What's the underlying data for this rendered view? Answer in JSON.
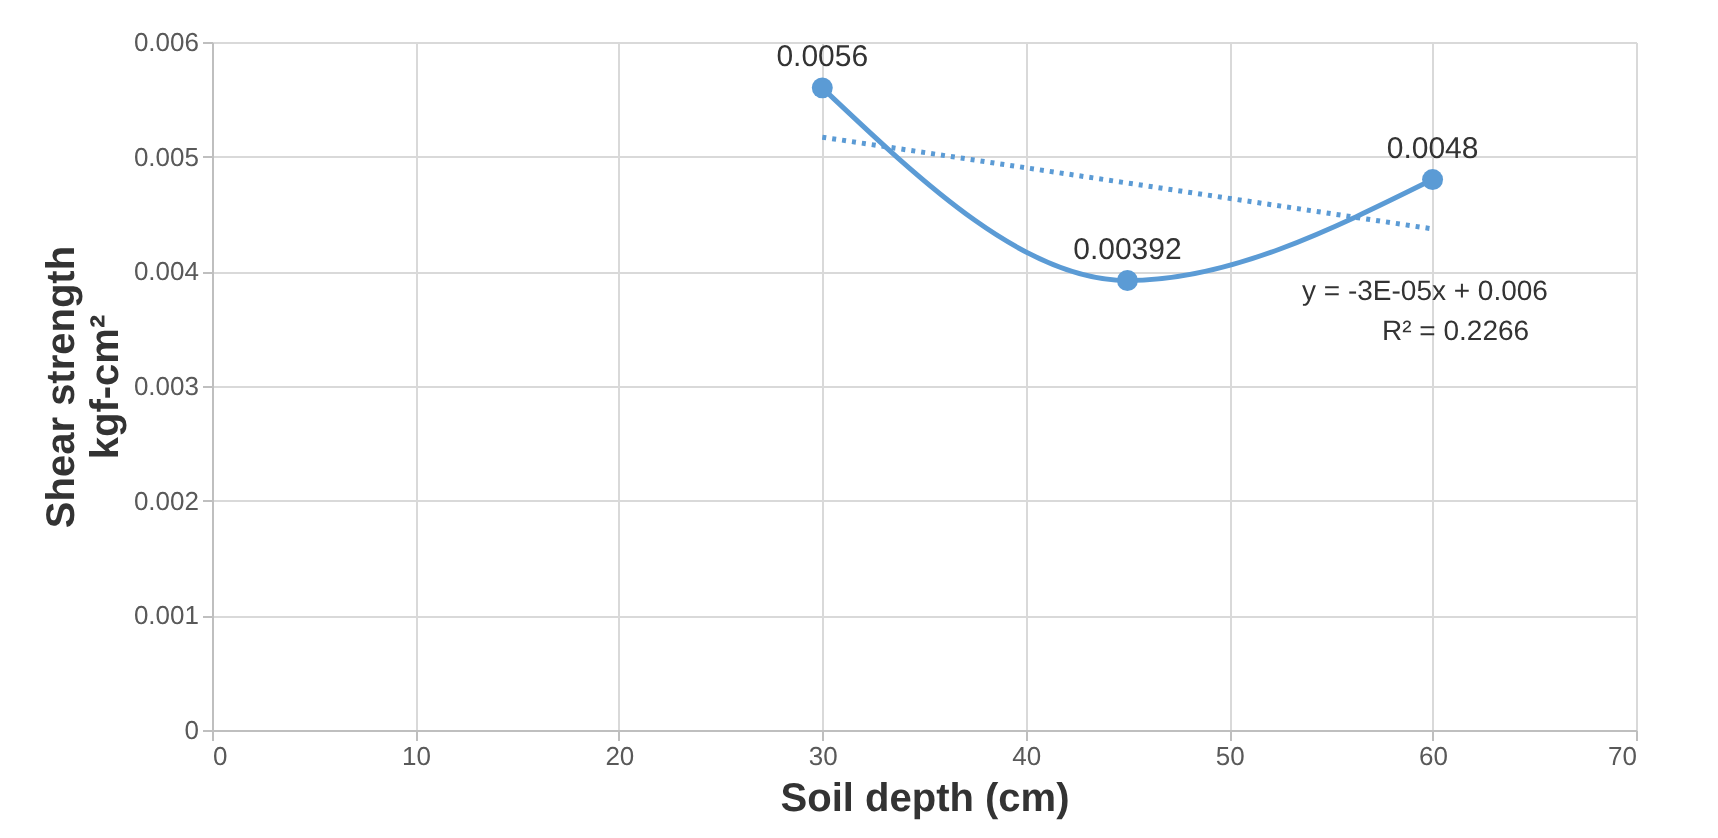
{
  "chart_data": {
    "type": "line",
    "xlabel": "Soil depth (cm)",
    "ylabel": "Shear strength\nkgf-cm²",
    "xlim": [
      0,
      70
    ],
    "xticks": [
      0,
      10,
      20,
      30,
      40,
      50,
      60,
      70
    ],
    "ylim": [
      0,
      0.006
    ],
    "yticks": [
      0,
      0.001,
      0.002,
      0.003,
      0.004,
      0.005,
      0.006
    ],
    "grid": true,
    "marker": "circle",
    "line_style": "solid",
    "series": [
      {
        "color": "#5b9bd5",
        "x": [
          30,
          45,
          60
        ],
        "values": [
          0.0056,
          0.00392,
          0.0048
        ],
        "data_labels": true
      },
      {
        "type": "line",
        "color": "#5b9bd5",
        "x": [
          30,
          60
        ],
        "values": [
          0.00517,
          0.00437
        ],
        "line_style": "dotted",
        "marker": "none"
      }
    ],
    "annotations": [
      "y = -3E-05x + 0.006",
      "R² = 0.2266"
    ]
  }
}
